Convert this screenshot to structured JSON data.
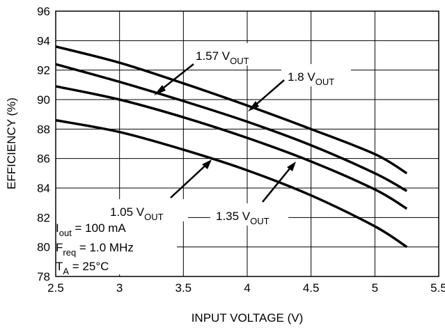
{
  "chart_data": {
    "type": "line",
    "xlabel": "INPUT VOLTAGE (V)",
    "ylabel": "EFFICIENCY (%)",
    "xlim": [
      2.5,
      5.5
    ],
    "ylim": [
      78,
      96
    ],
    "xticks": [
      "2.5",
      "3",
      "3.5",
      "4",
      "4.5",
      "5",
      "5.5"
    ],
    "yticks": [
      "78",
      "80",
      "82",
      "84",
      "86",
      "88",
      "90",
      "92",
      "94",
      "96"
    ],
    "grid": true,
    "x": [
      2.5,
      3.0,
      3.5,
      4.0,
      4.5,
      5.0,
      5.25
    ],
    "series": [
      {
        "name": "1.05 V_OUT",
        "values": [
          88.6,
          87.8,
          86.6,
          85.2,
          83.5,
          81.4,
          80.0
        ]
      },
      {
        "name": "1.35 V_OUT",
        "values": [
          90.9,
          90.0,
          88.8,
          87.4,
          85.8,
          83.9,
          82.6
        ]
      },
      {
        "name": "1.57 V_OUT",
        "values": [
          92.4,
          91.2,
          89.9,
          88.5,
          86.9,
          85.0,
          83.8
        ]
      },
      {
        "name": "1.8 V_OUT",
        "values": [
          93.6,
          92.5,
          91.1,
          89.6,
          88.0,
          86.3,
          85.0
        ]
      }
    ],
    "labels": {
      "v105": {
        "main": "1.05 V",
        "sub": "OUT"
      },
      "v135": {
        "main": "1.35 V",
        "sub": "OUT"
      },
      "v157": {
        "main": "1.57 V",
        "sub": "OUT"
      },
      "v18": {
        "main": "1.8 V",
        "sub": "OUT"
      }
    },
    "conditions": {
      "iout": {
        "pre": "I",
        "sub": "out",
        "post": " = 100 mA"
      },
      "freq": {
        "pre": "F",
        "sub": "req",
        "post": " = 1.0 MHz"
      },
      "ta": {
        "pre": "T",
        "sub": "A",
        "post": " = 25°C"
      }
    },
    "line_color": "#000000"
  }
}
